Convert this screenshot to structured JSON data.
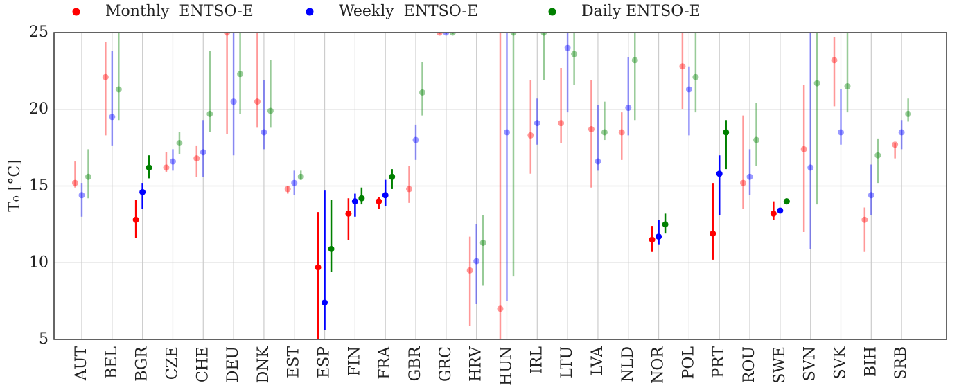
{
  "chart_data": {
    "type": "errorbar",
    "ylabel": "T₀ [°C]",
    "categories": [
      "AUT",
      "BEL",
      "BGR",
      "CZE",
      "CHE",
      "DEU",
      "DNK",
      "EST",
      "ESP",
      "FIN",
      "FRA",
      "GBR",
      "GRC",
      "HRV",
      "HUN",
      "IRL",
      "LTU",
      "LVA",
      "NLD",
      "NOR",
      "POL",
      "PRT",
      "ROU",
      "SWE",
      "SVN",
      "SVK",
      "BIH",
      "SRB"
    ],
    "highlight": [
      false,
      false,
      true,
      false,
      false,
      false,
      false,
      false,
      true,
      true,
      true,
      false,
      false,
      false,
      false,
      false,
      false,
      false,
      false,
      true,
      false,
      true,
      false,
      true,
      false,
      false,
      false,
      false
    ],
    "series": [
      {
        "name": "Monthly  ENTSO-E",
        "color": "#ff0000",
        "values": [
          15.2,
          22.1,
          12.8,
          16.2,
          16.8,
          25,
          20.5,
          14.8,
          9.7,
          13.2,
          14.0,
          14.8,
          25,
          9.5,
          7.0,
          18.3,
          19.1,
          18.7,
          18.5,
          11.5,
          22.8,
          11.9,
          15.2,
          13.2,
          17.4,
          23.2,
          12.8,
          17.7
        ],
        "low": [
          14.9,
          18.3,
          11.6,
          15.9,
          15.6,
          18.4,
          18.8,
          14.5,
          5,
          11.5,
          13.5,
          13.9,
          24.9,
          5.9,
          5,
          15.8,
          17.8,
          14.9,
          16.7,
          10.7,
          20.0,
          10.2,
          13.5,
          12.8,
          12.0,
          20.2,
          10.7,
          16.8
        ],
        "high": [
          16.6,
          24.4,
          14.1,
          17.2,
          17.6,
          25,
          25,
          15.0,
          13.3,
          14.2,
          14.3,
          16.3,
          25,
          11.7,
          25,
          21.9,
          22.7,
          21.9,
          19.8,
          12.4,
          25,
          15.2,
          19.6,
          14.0,
          21.6,
          24.7,
          13.6,
          17.8
        ]
      },
      {
        "name": "Weekly  ENTSO-E",
        "color": "#0000ff",
        "values": [
          14.4,
          19.5,
          14.6,
          16.6,
          17.2,
          20.5,
          18.5,
          15.2,
          7.4,
          14.0,
          14.4,
          18.0,
          25,
          10.1,
          18.5,
          19.1,
          24.0,
          16.6,
          20.1,
          11.7,
          21.3,
          15.8,
          15.6,
          13.4,
          16.2,
          18.5,
          14.4,
          18.5
        ],
        "low": [
          13.0,
          17.6,
          13.5,
          16.0,
          15.6,
          17.0,
          17.4,
          14.4,
          5.6,
          13.0,
          13.7,
          16.7,
          24.9,
          7.3,
          7.5,
          17.7,
          19.8,
          16.0,
          18.3,
          11.2,
          18.3,
          13.1,
          14.4,
          13.3,
          10.9,
          17.7,
          13.1,
          17.4
        ],
        "high": [
          15.2,
          23.8,
          15.2,
          17.4,
          19.3,
          25,
          21.9,
          16.0,
          14.7,
          14.5,
          15.4,
          19.0,
          25,
          12.5,
          25,
          20.7,
          25,
          20.3,
          23.4,
          12.8,
          22.8,
          17.0,
          17.4,
          13.5,
          25,
          21.3,
          16.4,
          19.3
        ]
      },
      {
        "name": "Daily ENTSO-E",
        "color": "#008000",
        "values": [
          15.6,
          21.3,
          16.2,
          17.8,
          19.7,
          22.3,
          19.9,
          15.6,
          10.9,
          14.2,
          15.6,
          21.1,
          25,
          11.3,
          25,
          25,
          23.6,
          18.5,
          23.2,
          12.5,
          22.1,
          18.5,
          18.0,
          14.0,
          21.7,
          21.5,
          17.0,
          19.7
        ],
        "low": [
          14.2,
          19.3,
          15.5,
          17.1,
          18.5,
          19.7,
          18.8,
          15.4,
          9.4,
          13.8,
          14.8,
          19.6,
          24.9,
          8.5,
          9.1,
          21.9,
          21.6,
          18.0,
          19.3,
          11.9,
          19.8,
          16.1,
          16.3,
          13.8,
          13.8,
          19.8,
          15.2,
          19.2
        ],
        "high": [
          17.4,
          25,
          17.0,
          18.5,
          23.8,
          25,
          23.2,
          16.0,
          14.1,
          14.9,
          16.1,
          23.1,
          25,
          13.1,
          25,
          25,
          25,
          20.5,
          25,
          13.2,
          25,
          19.3,
          20.4,
          14.1,
          25,
          25,
          18.1,
          20.7
        ]
      }
    ],
    "ylim": [
      5,
      25
    ],
    "yticks": [
      5,
      10,
      15,
      20,
      25
    ],
    "grid": true
  }
}
